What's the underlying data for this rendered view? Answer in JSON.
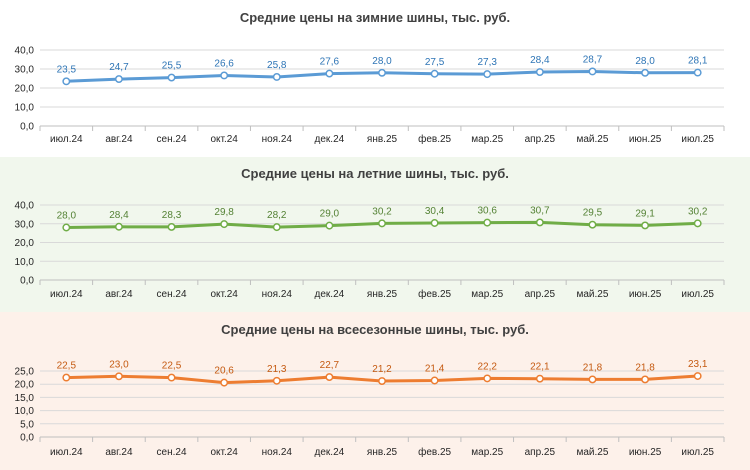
{
  "chart_data": [
    {
      "type": "line",
      "title": "Средние цены на зимние шины, тыс. руб.",
      "categories": [
        "июл.24",
        "авг.24",
        "сен.24",
        "окт.24",
        "ноя.24",
        "дек.24",
        "янв.25",
        "фев.25",
        "мар.25",
        "апр.25",
        "май.25",
        "июн.25",
        "июл.25"
      ],
      "values": [
        23.5,
        24.7,
        25.5,
        26.6,
        25.8,
        27.6,
        28.0,
        27.5,
        27.3,
        28.4,
        28.7,
        28.0,
        28.1
      ],
      "labels": [
        "23,5",
        "24,7",
        "25,5",
        "26,6",
        "25,8",
        "27,6",
        "28,0",
        "27,5",
        "27,3",
        "28,4",
        "28,7",
        "28,0",
        "28,1"
      ],
      "ylim": [
        0,
        40
      ],
      "yticks": [
        "0,0",
        "10,0",
        "20,0",
        "30,0",
        "40,0"
      ],
      "color": "#5B9BD5",
      "label_color": "#2E75B6",
      "background": "#ffffff",
      "grid": true
    },
    {
      "type": "line",
      "title": "Средние цены на летние шины, тыс. руб.",
      "categories": [
        "июл.24",
        "авг.24",
        "сен.24",
        "окт.24",
        "ноя.24",
        "дек.24",
        "янв.25",
        "фев.25",
        "мар.25",
        "апр.25",
        "май.25",
        "июн.25",
        "июл.25"
      ],
      "values": [
        28.0,
        28.4,
        28.3,
        29.8,
        28.2,
        29.0,
        30.2,
        30.4,
        30.6,
        30.7,
        29.5,
        29.1,
        30.2
      ],
      "labels": [
        "28,0",
        "28,4",
        "28,3",
        "29,8",
        "28,2",
        "29,0",
        "30,2",
        "30,4",
        "30,6",
        "30,7",
        "29,5",
        "29,1",
        "30,2"
      ],
      "ylim": [
        0,
        40
      ],
      "yticks": [
        "0,0",
        "10,0",
        "20,0",
        "30,0",
        "40,0"
      ],
      "color": "#70AD47",
      "label_color": "#548235",
      "background": "#f1f7ed",
      "grid": true
    },
    {
      "type": "line",
      "title": "Средние цены на всесезонные шины, тыс. руб.",
      "categories": [
        "июл.24",
        "авг.24",
        "сен.24",
        "окт.24",
        "ноя.24",
        "дек.24",
        "янв.25",
        "фев.25",
        "мар.25",
        "апр.25",
        "май.25",
        "июн.25",
        "июл.25"
      ],
      "values": [
        22.5,
        23.0,
        22.5,
        20.6,
        21.3,
        22.7,
        21.2,
        21.4,
        22.2,
        22.1,
        21.8,
        21.8,
        23.1
      ],
      "labels": [
        "22,5",
        "23,0",
        "22,5",
        "20,6",
        "21,3",
        "22,7",
        "21,2",
        "21,4",
        "22,2",
        "22,1",
        "21,8",
        "21,8",
        "23,1"
      ],
      "ylim": [
        0,
        25
      ],
      "yticks": [
        "0,0",
        "5,0",
        "10,0",
        "15,0",
        "20,0",
        "25,0"
      ],
      "color": "#ED7D31",
      "label_color": "#C55A11",
      "background": "#fdf1ea",
      "grid": true
    }
  ]
}
